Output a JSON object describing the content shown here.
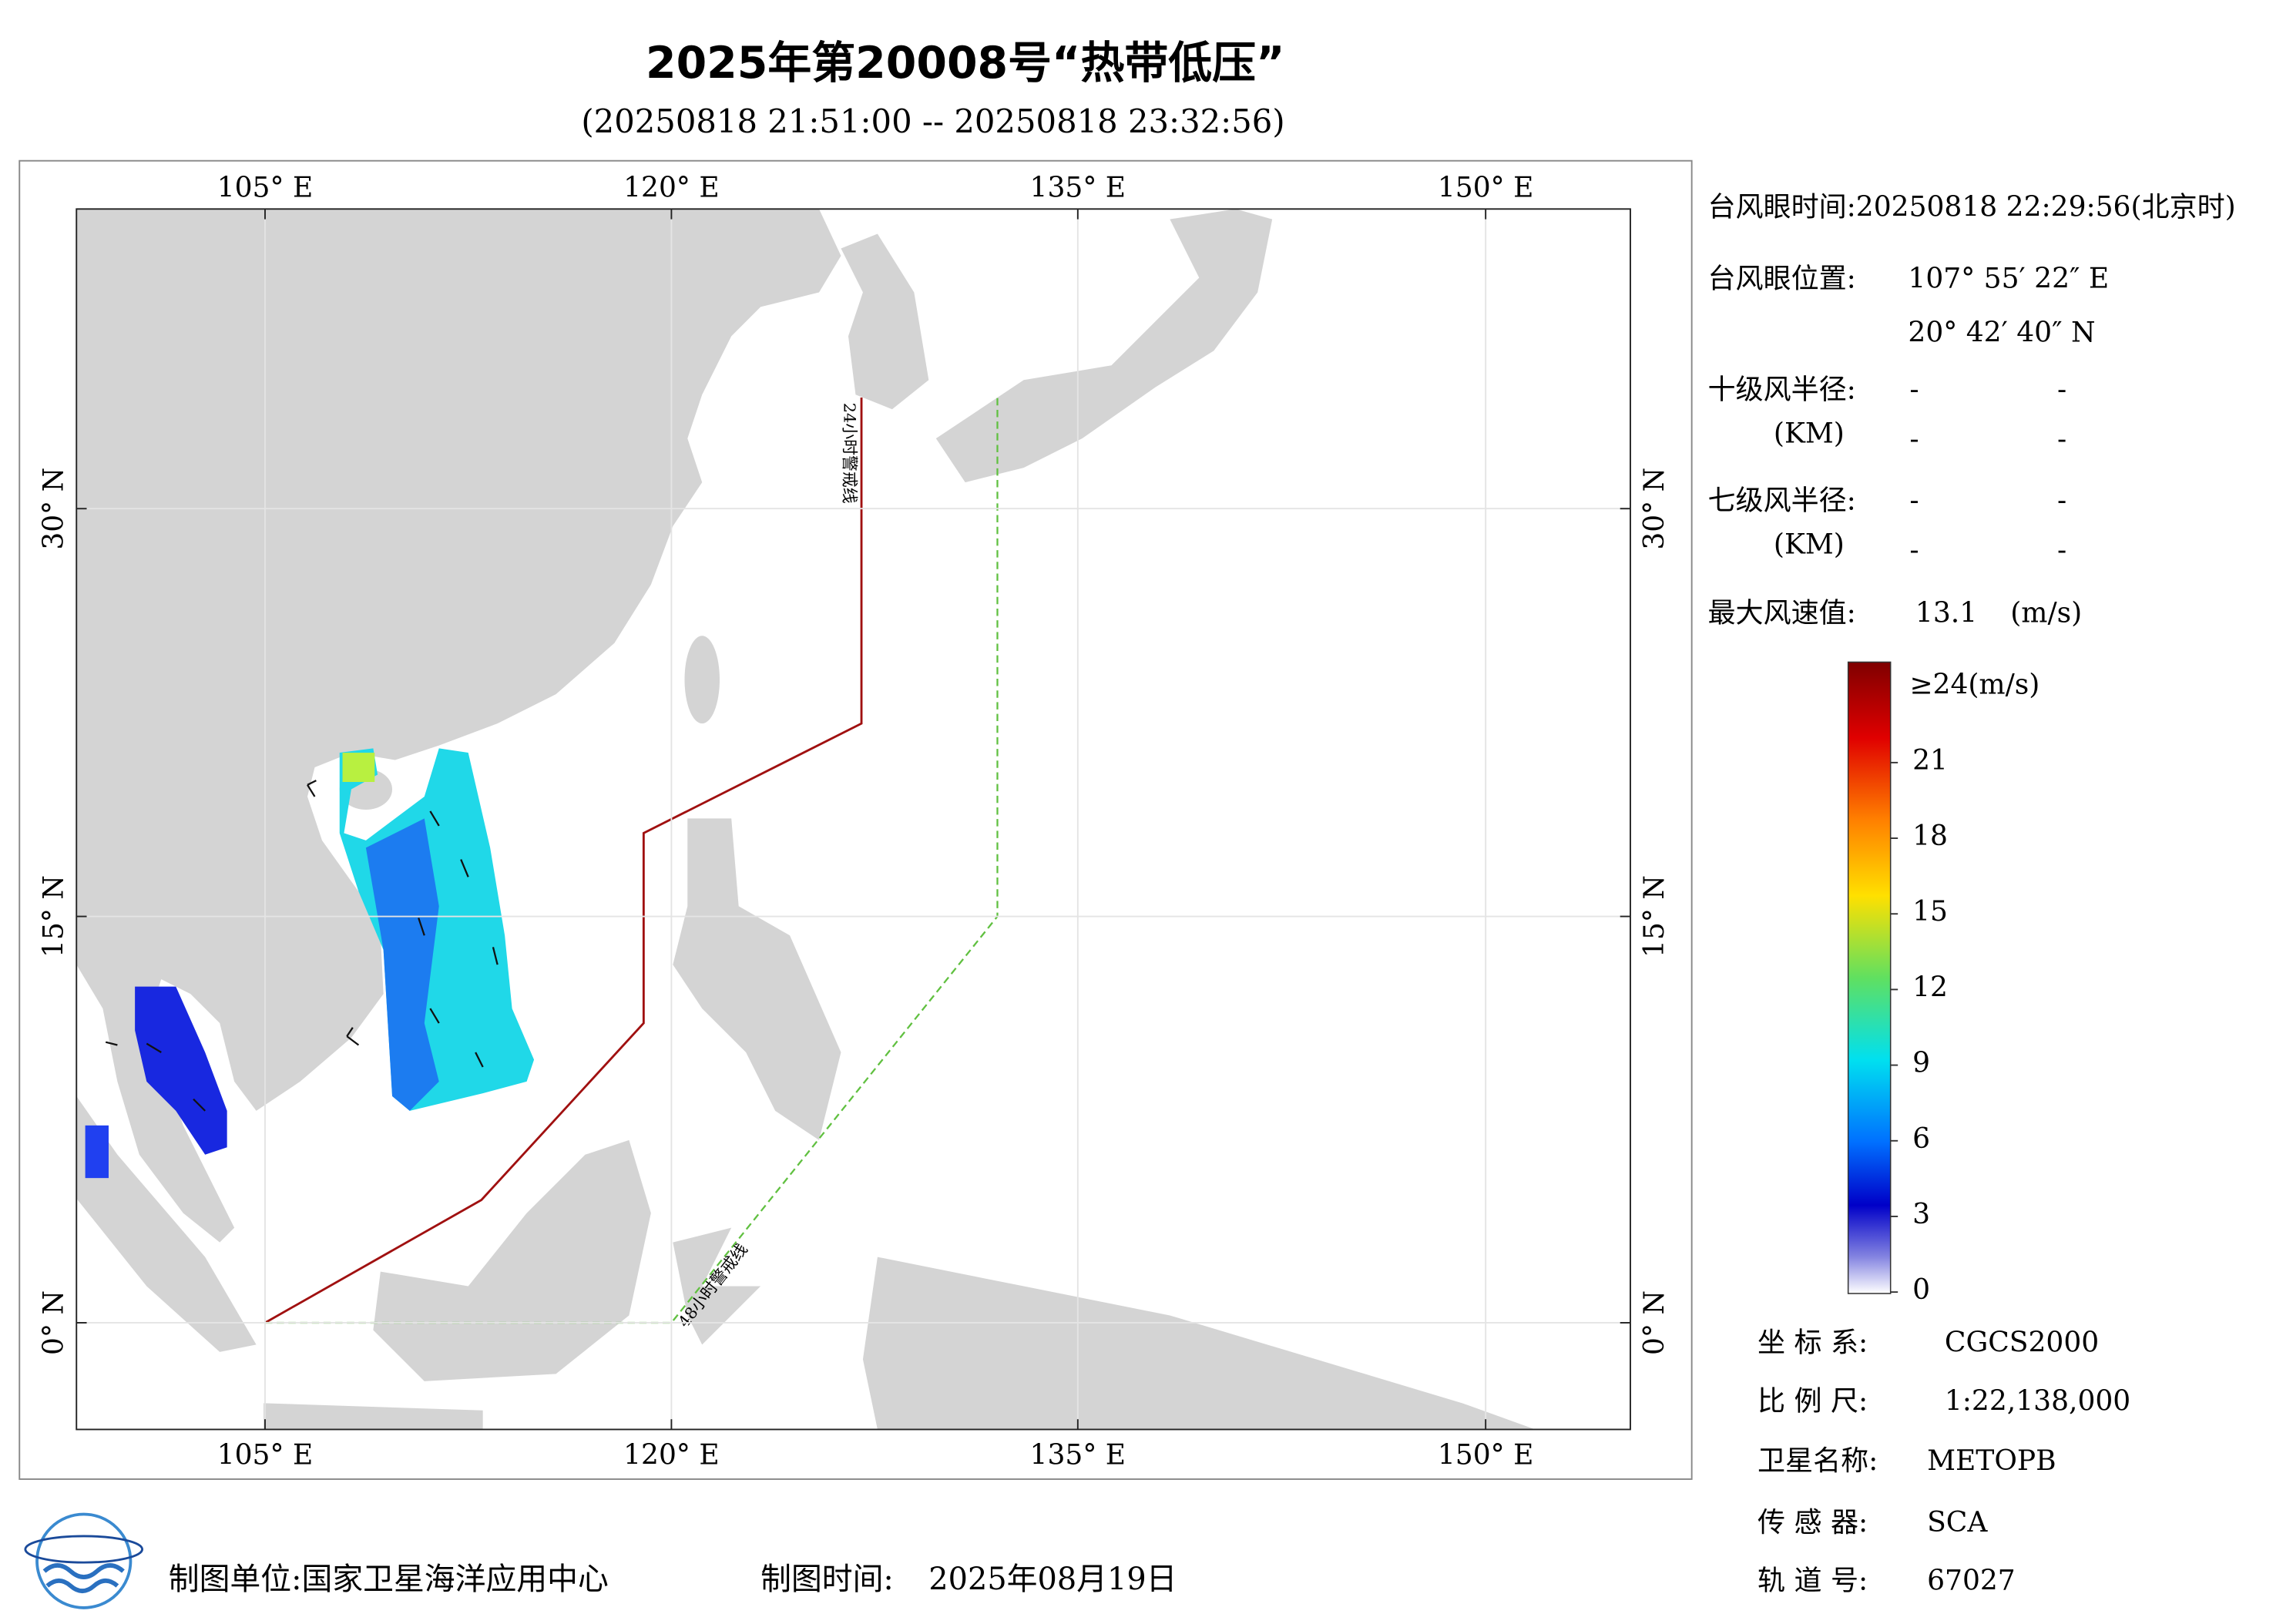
{
  "header": {
    "title": "2025年第20008号“热带低压”",
    "subtitle": "(20250818 21:51:00 -- 20250818 23:32:56)"
  },
  "map": {
    "lon_labels": [
      "105° E",
      "120° E",
      "135° E",
      "150° E"
    ],
    "lat_labels": [
      "30° N",
      "15° N",
      "0° N"
    ],
    "line_24h": "24小时警戒线",
    "line_48h": "48小时警戒线"
  },
  "info": {
    "eye_time": "台风眼时间:20250818 22:29:56(北京时)",
    "eye_position_label": "台风眼位置:",
    "eye_lon": "107° 55′ 22″ E",
    "eye_lat": "20° 42′ 40″ N",
    "r10_label": "十级风半径:",
    "r10_unit": "(KM)",
    "r10_values": [
      "-",
      "-",
      "-",
      "-"
    ],
    "r7_label": "七级风半径:",
    "r7_unit": "(KM)",
    "r7_values": [
      "-",
      "-",
      "-",
      "-"
    ],
    "max_wind_label": "最大风速值:",
    "max_wind": 13.1,
    "max_wind_unit": "(m/s)"
  },
  "colorbar": {
    "range": [
      0,
      24
    ],
    "max_label": "≥24(m/s)",
    "ticks": [
      0,
      3,
      6,
      9,
      12,
      15,
      18,
      21
    ]
  },
  "meta": {
    "coord_label": "坐 标 系:",
    "coord": "CGCS2000",
    "scale_label": "比 例 尺:",
    "scale": "1:22,138,000",
    "satellite_label": "卫星名称:",
    "satellite": "METOPB",
    "sensor_label": "传 感 器:",
    "sensor": "SCA",
    "orbit_label": "轨 道 号:",
    "orbit": 67027
  },
  "footer": {
    "unit": "制图单位:国家卫星海洋应用中心",
    "time_label": "制图时间:",
    "time": "2025年08月19日"
  }
}
